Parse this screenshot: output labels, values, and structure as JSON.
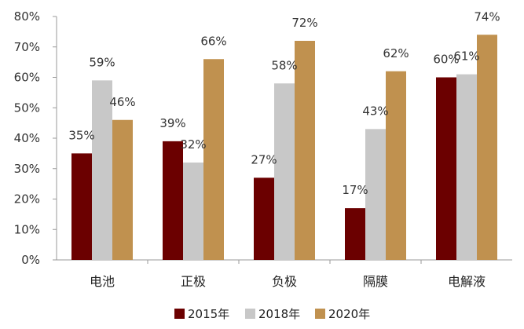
{
  "chart_data": {
    "type": "bar",
    "categories": [
      "电池",
      "正极",
      "负极",
      "隔膜",
      "电解液"
    ],
    "series": [
      {
        "name": "2015年",
        "values": [
          35,
          39,
          27,
          17,
          60
        ],
        "labels": [
          "35%",
          "39%",
          "27%",
          "17%",
          "60%"
        ]
      },
      {
        "name": "2018年",
        "values": [
          59,
          32,
          58,
          43,
          61
        ],
        "labels": [
          "59%",
          "32%",
          "58%",
          "43%",
          "61%"
        ]
      },
      {
        "name": "2020年",
        "values": [
          46,
          66,
          72,
          62,
          74
        ],
        "labels": [
          "46%",
          "66%",
          "72%",
          "62%",
          "74%"
        ]
      }
    ],
    "colors": [
      "#6b0000",
      "#c8c8c8",
      "#c0914f"
    ],
    "ylim": [
      0,
      80
    ],
    "yticks": [
      "0%",
      "10%",
      "20%",
      "30%",
      "40%",
      "50%",
      "60%",
      "70%",
      "80%"
    ],
    "title": "",
    "xlabel": "",
    "ylabel": "",
    "grid": false,
    "legend_position": "bottom"
  }
}
